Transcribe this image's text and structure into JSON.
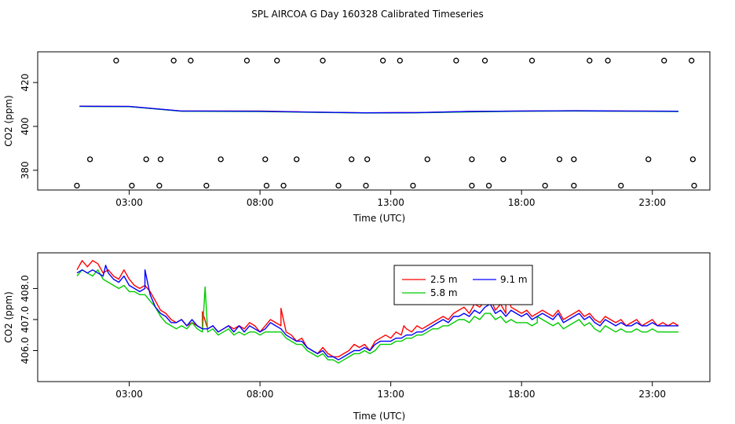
{
  "title": "SPL AIRCOA G  Day 160328  Calibrated Timeseries",
  "chart_data": [
    {
      "type": "scatter+line",
      "xlabel": "Time (UTC)",
      "ylabel": "CO2 (ppm)",
      "x_ticks": [
        "03:00",
        "08:00",
        "13:00",
        "18:00",
        "23:00"
      ],
      "x_tick_values": [
        3,
        8,
        13,
        18,
        23
      ],
      "xlim": [
        -0.5,
        25.2
      ],
      "y_ticks": [
        380,
        400,
        420
      ],
      "ylim": [
        371,
        434
      ],
      "grid": false,
      "series": [
        {
          "color": "#ff0000",
          "x": [
            1.1,
            3,
            5,
            8,
            10,
            12,
            14,
            16,
            18,
            20,
            22,
            24
          ],
          "values": [
            409.2,
            409.1,
            407.0,
            407.0,
            406.5,
            406.2,
            406.3,
            406.8,
            407.0,
            407.1,
            407.0,
            406.9
          ]
        },
        {
          "color": "#00cc00",
          "x": [
            1.1,
            3,
            5,
            8,
            10,
            12,
            14,
            16,
            18,
            20,
            22,
            24
          ],
          "values": [
            409.1,
            409.0,
            406.9,
            406.8,
            406.4,
            406.1,
            406.2,
            406.6,
            406.9,
            407.0,
            406.9,
            406.8
          ]
        },
        {
          "color": "#0000ff",
          "x": [
            1.1,
            3,
            5,
            8,
            10,
            12,
            14,
            16,
            18,
            20,
            22,
            24
          ],
          "values": [
            409.2,
            409.1,
            407.0,
            406.9,
            406.5,
            406.2,
            406.3,
            406.8,
            407.0,
            407.1,
            407.0,
            406.9
          ]
        }
      ],
      "points": {
        "top_row_value": 430,
        "middle_row_value": 385,
        "bottom_row_value": 373,
        "top_row_x": [
          2.5,
          4.7,
          5.35,
          7.5,
          8.65,
          10.4,
          12.7,
          13.35,
          15.5,
          16.6,
          18.4,
          20.6,
          21.3,
          23.45,
          24.5
        ],
        "middle_row_x": [
          1.5,
          3.65,
          4.2,
          6.5,
          8.2,
          9.4,
          11.5,
          12.1,
          14.4,
          16.1,
          17.3,
          19.45,
          20.0,
          22.85,
          24.55
        ],
        "bottom_row_x": [
          1.0,
          3.1,
          4.15,
          5.95,
          8.25,
          8.9,
          11.0,
          12.05,
          13.85,
          16.1,
          16.75,
          18.9,
          20.0,
          21.8,
          24.6
        ]
      }
    },
    {
      "type": "line",
      "xlabel": "Time (UTC)",
      "ylabel": "CO2 (ppm)",
      "x_ticks": [
        "03:00",
        "08:00",
        "13:00",
        "18:00",
        "23:00"
      ],
      "x_tick_values": [
        3,
        8,
        13,
        18,
        23
      ],
      "xlim": [
        -0.5,
        25.2
      ],
      "y_ticks": [
        "406.0",
        "407.0",
        "408.0"
      ],
      "y_tick_values": [
        406.0,
        407.0,
        408.0
      ],
      "ylim": [
        5.0,
        9.15
      ],
      "legend": "top-right",
      "grid": false,
      "series": [
        {
          "name": "2.5 m",
          "color": "#ff0000",
          "x": [
            1.0,
            1.2,
            1.4,
            1.6,
            1.8,
            2.0,
            2.2,
            2.4,
            2.6,
            2.8,
            3.0,
            3.2,
            3.4,
            3.6,
            3.8,
            4.0,
            4.2,
            4.4,
            4.6,
            4.8,
            5.0,
            5.2,
            5.4,
            5.6,
            5.8,
            6.0,
            6.2,
            6.4,
            6.6,
            6.8,
            7.0,
            7.2,
            7.4,
            7.6,
            7.8,
            8.0,
            8.2,
            8.4,
            8.6,
            8.8,
            9.0,
            9.2,
            9.4,
            9.6,
            9.8,
            10.0,
            10.2,
            10.4,
            10.6,
            10.8,
            11.0,
            11.2,
            11.4,
            11.6,
            11.8,
            12.0,
            12.2,
            12.4,
            12.6,
            12.8,
            13.0,
            13.2,
            13.4,
            13.6,
            13.8,
            14.0,
            14.2,
            14.4,
            14.6,
            14.8,
            15.0,
            15.2,
            15.4,
            15.6,
            15.8,
            16.0,
            16.2,
            16.4,
            16.6,
            16.8,
            17.0,
            17.2,
            17.4,
            17.6,
            17.8,
            18.0,
            18.2,
            18.4,
            18.6,
            18.8,
            19.0,
            19.2,
            19.4,
            19.6,
            19.8,
            20.0,
            20.2,
            20.4,
            20.6,
            20.8,
            21.0,
            21.2,
            21.4,
            21.6,
            21.8,
            22.0,
            22.2,
            22.4,
            22.6,
            22.8,
            23.0,
            23.2,
            23.4,
            23.6,
            23.8,
            24.0
          ],
          "values": [
            8.6,
            8.9,
            8.7,
            8.9,
            8.8,
            8.5,
            8.6,
            8.4,
            8.3,
            8.6,
            8.3,
            8.1,
            8.0,
            8.1,
            7.9,
            7.6,
            7.3,
            7.2,
            7.0,
            6.9,
            7.0,
            6.8,
            6.9,
            6.8,
            6.7,
            6.7,
            6.8,
            6.6,
            6.7,
            6.8,
            6.7,
            6.8,
            6.7,
            6.9,
            6.8,
            6.6,
            6.8,
            7.0,
            6.9,
            6.8,
            6.6,
            6.5,
            6.3,
            6.4,
            6.1,
            6.0,
            5.9,
            6.1,
            5.9,
            5.8,
            5.8,
            5.9,
            6.0,
            6.2,
            6.1,
            6.2,
            6.0,
            6.3,
            6.4,
            6.5,
            6.4,
            6.6,
            6.5,
            6.7,
            6.6,
            6.8,
            6.7,
            6.8,
            6.9,
            7.0,
            7.1,
            7.0,
            7.2,
            7.3,
            7.4,
            7.2,
            7.5,
            7.4,
            7.6,
            7.7,
            7.3,
            7.5,
            7.2,
            7.4,
            7.3,
            7.2,
            7.3,
            7.1,
            7.2,
            7.3,
            7.2,
            7.1,
            7.3,
            7.0,
            7.1,
            7.2,
            7.3,
            7.1,
            7.2,
            7.0,
            6.9,
            7.1,
            7.0,
            6.9,
            7.0,
            6.8,
            6.9,
            7.0,
            6.8,
            6.9,
            7.0,
            6.8,
            6.9,
            6.8,
            6.9,
            6.8
          ],
          "spikes": [
            [
              8.8,
              7.36
            ],
            [
              5.8,
              7.25
            ],
            [
              17.4,
              7.99
            ],
            [
              13.5,
              6.8
            ]
          ]
        },
        {
          "name": "5.8 m",
          "color": "#00cc00",
          "x": [
            1.0,
            1.2,
            1.4,
            1.6,
            1.8,
            2.0,
            2.2,
            2.4,
            2.6,
            2.8,
            3.0,
            3.2,
            3.4,
            3.6,
            3.8,
            4.0,
            4.2,
            4.4,
            4.6,
            4.8,
            5.0,
            5.2,
            5.4,
            5.6,
            5.8,
            6.0,
            6.2,
            6.4,
            6.6,
            6.8,
            7.0,
            7.2,
            7.4,
            7.6,
            7.8,
            8.0,
            8.2,
            8.4,
            8.6,
            8.8,
            9.0,
            9.2,
            9.4,
            9.6,
            9.8,
            10.0,
            10.2,
            10.4,
            10.6,
            10.8,
            11.0,
            11.2,
            11.4,
            11.6,
            11.8,
            12.0,
            12.2,
            12.4,
            12.6,
            12.8,
            13.0,
            13.2,
            13.4,
            13.6,
            13.8,
            14.0,
            14.2,
            14.4,
            14.6,
            14.8,
            15.0,
            15.2,
            15.4,
            15.6,
            15.8,
            16.0,
            16.2,
            16.4,
            16.6,
            16.8,
            17.0,
            17.2,
            17.4,
            17.6,
            17.8,
            18.0,
            18.2,
            18.4,
            18.6,
            18.8,
            19.0,
            19.2,
            19.4,
            19.6,
            19.8,
            20.0,
            20.2,
            20.4,
            20.6,
            20.8,
            21.0,
            21.2,
            21.4,
            21.6,
            21.8,
            22.0,
            22.2,
            22.4,
            22.6,
            22.8,
            23.0,
            23.2,
            23.4,
            23.6,
            23.8,
            24.0
          ],
          "values": [
            8.4,
            8.6,
            8.5,
            8.4,
            8.6,
            8.3,
            8.2,
            8.1,
            8.0,
            8.1,
            7.9,
            7.9,
            7.8,
            7.8,
            7.6,
            7.4,
            7.1,
            6.9,
            6.8,
            6.7,
            6.8,
            6.7,
            6.9,
            6.7,
            6.6,
            6.6,
            6.7,
            6.5,
            6.6,
            6.7,
            6.5,
            6.6,
            6.5,
            6.6,
            6.6,
            6.5,
            6.6,
            6.6,
            6.6,
            6.6,
            6.4,
            6.3,
            6.2,
            6.2,
            6.0,
            5.9,
            5.8,
            5.9,
            5.7,
            5.7,
            5.6,
            5.7,
            5.8,
            5.9,
            5.9,
            6.0,
            5.9,
            6.0,
            6.2,
            6.2,
            6.2,
            6.3,
            6.3,
            6.4,
            6.4,
            6.5,
            6.5,
            6.6,
            6.7,
            6.7,
            6.8,
            6.8,
            6.9,
            7.0,
            7.0,
            6.9,
            7.1,
            7.0,
            7.2,
            7.2,
            7.0,
            7.1,
            6.9,
            7.0,
            6.9,
            6.9,
            6.9,
            6.8,
            6.9,
            7.0,
            6.9,
            6.8,
            6.9,
            6.7,
            6.8,
            6.9,
            7.0,
            6.8,
            6.9,
            6.7,
            6.6,
            6.8,
            6.7,
            6.6,
            6.7,
            6.6,
            6.6,
            6.7,
            6.6,
            6.6,
            6.7,
            6.6,
            6.6,
            6.6,
            6.6,
            6.6
          ],
          "spikes": [
            [
              5.9,
              8.05
            ],
            [
              18.6,
              7.1
            ]
          ]
        },
        {
          "name": "9.1 m",
          "color": "#0000ff",
          "x": [
            1.0,
            1.2,
            1.4,
            1.6,
            1.8,
            2.0,
            2.2,
            2.4,
            2.6,
            2.8,
            3.0,
            3.2,
            3.4,
            3.6,
            3.8,
            4.0,
            4.2,
            4.4,
            4.6,
            4.8,
            5.0,
            5.2,
            5.4,
            5.6,
            5.8,
            6.0,
            6.2,
            6.4,
            6.6,
            6.8,
            7.0,
            7.2,
            7.4,
            7.6,
            7.8,
            8.0,
            8.2,
            8.4,
            8.6,
            8.8,
            9.0,
            9.2,
            9.4,
            9.6,
            9.8,
            10.0,
            10.2,
            10.4,
            10.6,
            10.8,
            11.0,
            11.2,
            11.4,
            11.6,
            11.8,
            12.0,
            12.2,
            12.4,
            12.6,
            12.8,
            13.0,
            13.2,
            13.4,
            13.6,
            13.8,
            14.0,
            14.2,
            14.4,
            14.6,
            14.8,
            15.0,
            15.2,
            15.4,
            15.6,
            15.8,
            16.0,
            16.2,
            16.4,
            16.6,
            16.8,
            17.0,
            17.2,
            17.4,
            17.6,
            17.8,
            18.0,
            18.2,
            18.4,
            18.6,
            18.8,
            19.0,
            19.2,
            19.4,
            19.6,
            19.8,
            20.0,
            20.2,
            20.4,
            20.6,
            20.8,
            21.0,
            21.2,
            21.4,
            21.6,
            21.8,
            22.0,
            22.2,
            22.4,
            22.6,
            22.8,
            23.0,
            23.2,
            23.4,
            23.6,
            23.8,
            24.0
          ],
          "values": [
            8.5,
            8.6,
            8.5,
            8.6,
            8.5,
            8.4,
            8.5,
            8.3,
            8.2,
            8.4,
            8.1,
            8.0,
            7.9,
            8.0,
            7.8,
            7.4,
            7.2,
            7.1,
            6.9,
            6.9,
            7.0,
            6.8,
            7.0,
            6.8,
            6.7,
            6.7,
            6.8,
            6.6,
            6.7,
            6.8,
            6.6,
            6.8,
            6.6,
            6.8,
            6.7,
            6.6,
            6.7,
            6.9,
            6.8,
            6.7,
            6.5,
            6.4,
            6.3,
            6.3,
            6.1,
            6.0,
            5.9,
            6.0,
            5.8,
            5.8,
            5.7,
            5.8,
            5.9,
            6.0,
            6.0,
            6.1,
            6.0,
            6.2,
            6.3,
            6.3,
            6.3,
            6.4,
            6.4,
            6.5,
            6.5,
            6.6,
            6.6,
            6.7,
            6.8,
            6.9,
            7.0,
            6.9,
            7.1,
            7.1,
            7.2,
            7.1,
            7.3,
            7.2,
            7.4,
            7.5,
            7.2,
            7.3,
            7.1,
            7.3,
            7.2,
            7.1,
            7.2,
            7.0,
            7.1,
            7.2,
            7.1,
            7.0,
            7.2,
            6.9,
            7.0,
            7.1,
            7.2,
            7.0,
            7.1,
            6.9,
            6.8,
            7.0,
            6.9,
            6.8,
            6.9,
            6.8,
            6.8,
            6.9,
            6.8,
            6.8,
            6.9,
            6.8,
            6.8,
            6.8,
            6.8,
            6.8
          ],
          "spikes": [
            [
              2.1,
              8.75
            ],
            [
              3.6,
              8.6
            ]
          ]
        }
      ]
    }
  ]
}
